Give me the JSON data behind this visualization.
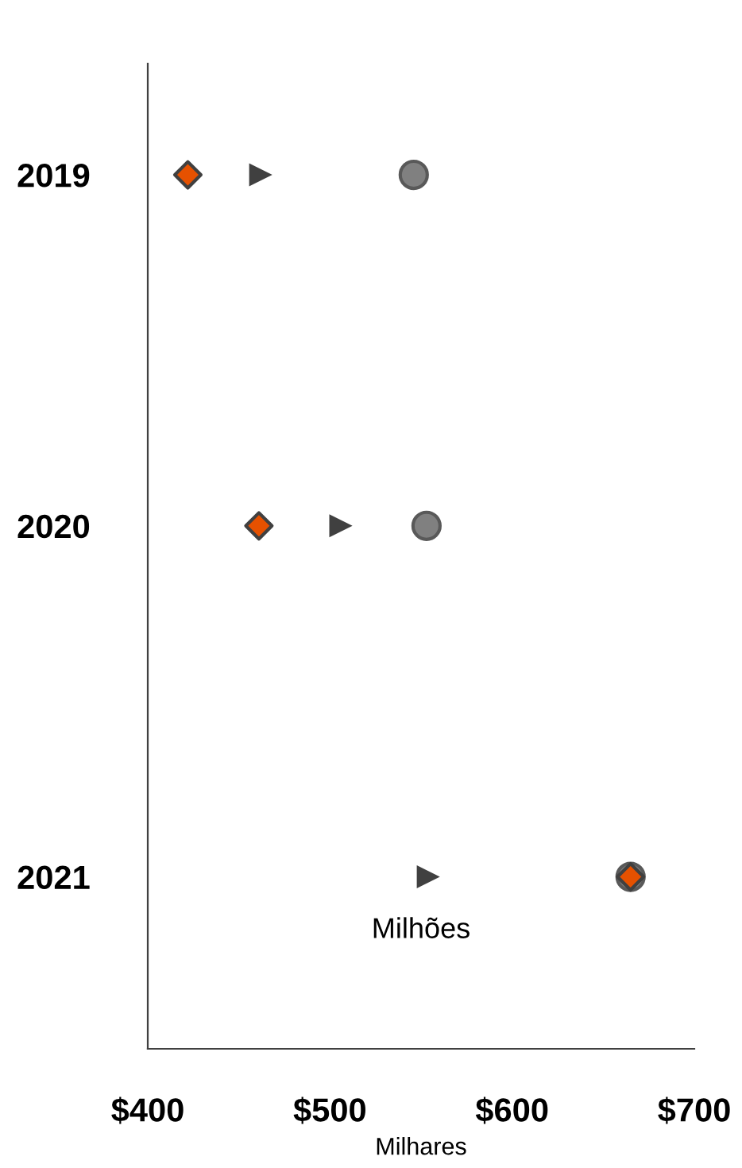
{
  "chart_data": {
    "type": "scatter",
    "orientation": "horizontal",
    "xlabel": "Milhares",
    "categories": [
      "2019",
      "2020",
      "2021"
    ],
    "series": [
      {
        "color": "#808080",
        "marker": "circle",
        "values": [
          546,
          553,
          665
        ]
      },
      {
        "color": "#404040",
        "marker": "triangle",
        "values": [
          462,
          506,
          554
        ]
      },
      {
        "color": "#e65100",
        "marker": "diamond",
        "values": [
          422,
          461,
          665
        ]
      }
    ],
    "xlim": [
      400,
      700
    ],
    "xticks": [
      {
        "value": 400,
        "label": "$400"
      },
      {
        "value": 500,
        "label": "$500"
      },
      {
        "value": 600,
        "label": "$600"
      },
      {
        "value": 700,
        "label": "$700"
      }
    ],
    "annotations": [
      "Milhões"
    ],
    "grid": false,
    "legend": false
  }
}
